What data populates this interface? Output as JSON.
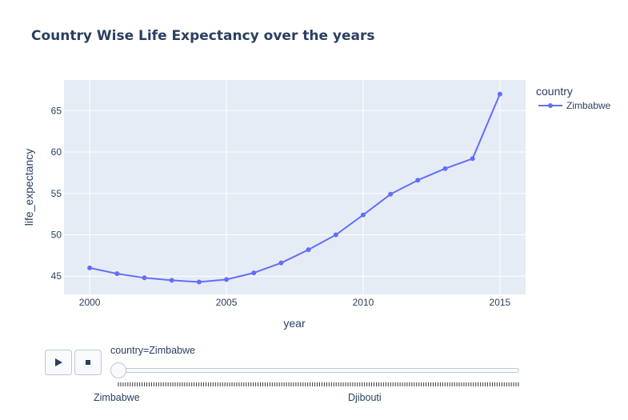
{
  "chart_data": {
    "type": "line",
    "title": "Country Wise Life Expectancy over the years",
    "xlabel": "year",
    "ylabel": "life_expectancy",
    "x_ticks": [
      "2000",
      "2005",
      "2010",
      "2015"
    ],
    "y_ticks": [
      "45",
      "50",
      "55",
      "60",
      "65"
    ],
    "xlim": [
      1999.06,
      2015.94
    ],
    "ylim": [
      42.8,
      68.7
    ],
    "grid": true,
    "legend_title": "country",
    "legend_position": "top-right",
    "series": [
      {
        "name": "Zimbabwe",
        "color": "#636efa",
        "x": [
          2000,
          2001,
          2002,
          2003,
          2004,
          2005,
          2006,
          2007,
          2008,
          2009,
          2010,
          2011,
          2012,
          2013,
          2014,
          2015
        ],
        "y": [
          46.0,
          45.3,
          44.8,
          44.5,
          44.3,
          44.6,
          45.4,
          46.6,
          48.2,
          50.0,
          52.4,
          54.9,
          56.6,
          58.0,
          59.2,
          67.0
        ]
      }
    ]
  },
  "controls": {
    "play_icon": "play-icon",
    "stop_icon": "stop-icon",
    "slider_label": "country=Zimbabwe",
    "slider_steps": [
      "Zimbabwe",
      "Djibouti"
    ],
    "slider_value_fraction": 0
  }
}
